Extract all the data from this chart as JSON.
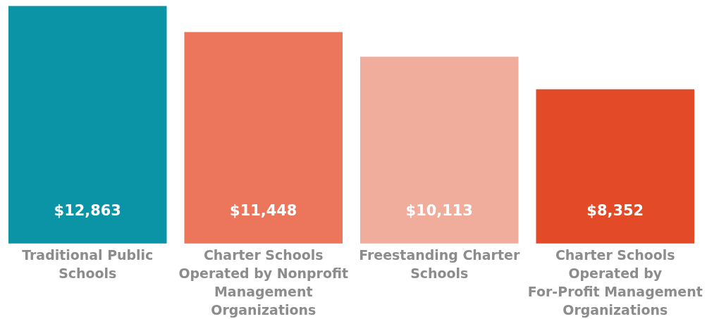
{
  "chart_data": {
    "type": "bar",
    "categories": [
      "Traditional Public Schools",
      "Charter Schools Operated by Nonprofit Management Organizations",
      "Freestanding Charter Schools",
      "Charter Schools Operated by For-Profit Management Organizations"
    ],
    "values": [
      12863,
      11448,
      10113,
      8352
    ],
    "colors": [
      "#0a94a6",
      "#eb765c",
      "#f1ad9c",
      "#e34a27"
    ],
    "value_labels": [
      "$12,863",
      "$11,448",
      "$10,113",
      "$8,352"
    ]
  }
}
